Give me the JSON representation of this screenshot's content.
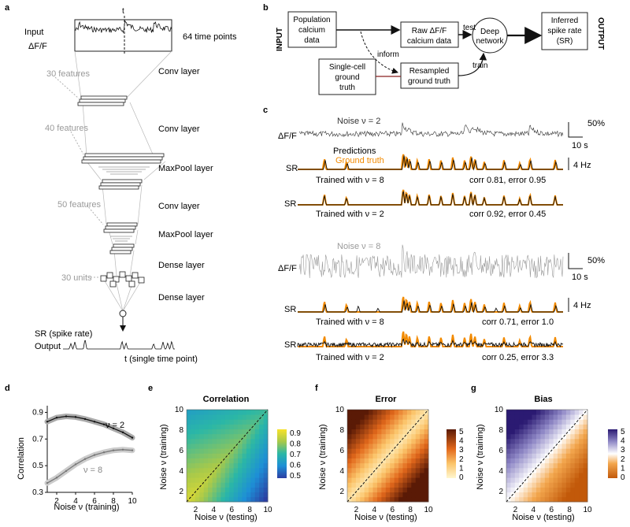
{
  "panels": {
    "a": "a",
    "b": "b",
    "c": "c",
    "d": "d",
    "e": "e",
    "f": "f",
    "g": "g"
  },
  "panel_a": {
    "input_label": "Input",
    "input_sub": "ΔF/F",
    "t_marker": "t",
    "time_points": "64 time points",
    "features_30": "30 features",
    "features_40": "40 features",
    "features_50": "50 features",
    "units_30": "30 units",
    "conv1": "Conv layer",
    "conv2": "Conv layer",
    "maxpool1": "MaxPool layer",
    "conv3": "Conv layer",
    "maxpool2": "MaxPool layer",
    "dense1": "Dense layer",
    "dense2": "Dense layer",
    "sr_label": "SR (spike rate)",
    "output_label": "Output",
    "single_time": "t (single time point)"
  },
  "panel_b": {
    "input_side": "INPUT",
    "output_side": "OUTPUT",
    "population_l1": "Population",
    "population_l2": "calcium",
    "population_l3": "data",
    "raw_l1": "Raw ΔF/F",
    "raw_l2": "calcium data",
    "test": "test",
    "deep_l1": "Deep",
    "deep_l2": "network",
    "inferred_l1": "Inferred",
    "inferred_l2": "spike rate",
    "inferred_l3": "(SR)",
    "inform": "inform",
    "train": "train",
    "single_l1": "Single-cell",
    "single_l2": "ground",
    "single_l3": "truth",
    "resampled_l1": "Resampled",
    "resampled_l2": "ground truth"
  },
  "panel_c": {
    "dff": "ΔF/F",
    "sr": "SR",
    "noise2": "Noise ν = 2",
    "noise8": "Noise ν = 8",
    "scale_pct": "50%",
    "scale_time": "10 s",
    "scale_hz": "4 Hz",
    "predictions": "Predictions",
    "ground_truth": "Ground truth",
    "trained8": "Trained with ν = 8",
    "trained2": "Trained with ν = 2",
    "stat_1": "corr 0.81, error 0.95",
    "stat_2": "corr 0.92, error 0.45",
    "stat_3": "corr 0.71, error 1.0",
    "stat_4": "corr 0.25, error 3.3",
    "colors": {
      "prediction": "#111111",
      "ground_truth": "#f28a00",
      "noisy": "#9a9a9a"
    }
  },
  "chart_data": [
    {
      "type": "line",
      "panel": "d",
      "xlabel": "Noise ν (training)",
      "ylabel": "Correlation",
      "xlim": [
        1,
        10
      ],
      "ylim": [
        0.3,
        0.95
      ],
      "xticks": [
        2,
        4,
        6,
        8,
        10
      ],
      "yticks": [
        0.3,
        0.5,
        0.7,
        0.9
      ],
      "series": [
        {
          "name": "ν = 2",
          "color": "#111111",
          "x": [
            1,
            2,
            3,
            4,
            5,
            6,
            7,
            8,
            9,
            10
          ],
          "values": [
            0.83,
            0.86,
            0.87,
            0.865,
            0.85,
            0.83,
            0.81,
            0.78,
            0.75,
            0.71
          ]
        },
        {
          "name": "ν = 8",
          "color": "#777777",
          "x": [
            1,
            2,
            3,
            4,
            5,
            6,
            7,
            8,
            9,
            10
          ],
          "values": [
            0.37,
            0.41,
            0.46,
            0.51,
            0.55,
            0.58,
            0.6,
            0.615,
            0.62,
            0.615
          ]
        }
      ]
    },
    {
      "type": "heatmap",
      "panel": "e",
      "title": "Correlation",
      "xlabel": "Noise ν (testing)",
      "ylabel": "Noise ν (training)",
      "xticks": [
        2,
        4,
        6,
        8,
        10
      ],
      "yticks": [
        2,
        4,
        6,
        8,
        10
      ],
      "colorbar_ticks": [
        "0.9",
        "0.8",
        "0.7",
        "0.6",
        "0.5"
      ],
      "colorbar_range": [
        0.45,
        0.95
      ],
      "colormap": "parula"
    },
    {
      "type": "heatmap",
      "panel": "f",
      "title": "Error",
      "xlabel": "Noise ν (testing)",
      "ylabel": "Noise ν (training)",
      "xticks": [
        2,
        4,
        6,
        8,
        10
      ],
      "yticks": [
        2,
        4,
        6,
        8,
        10
      ],
      "colorbar_ticks": [
        "5",
        "4",
        "3",
        "2",
        "1",
        "0"
      ],
      "colorbar_range": [
        0,
        5
      ],
      "colormap": "yellow-orange-brown"
    },
    {
      "type": "heatmap",
      "panel": "g",
      "title": "Bias",
      "xlabel": "Noise ν (testing)",
      "ylabel": "Noise ν (training)",
      "xticks": [
        2,
        4,
        6,
        8,
        10
      ],
      "yticks": [
        2,
        4,
        6,
        8,
        10
      ],
      "colorbar_ticks": [
        "5",
        "4",
        "3",
        "2",
        "1",
        "0"
      ],
      "colorbar_range": [
        0,
        5
      ],
      "colormap": "orange-white-purple"
    }
  ]
}
